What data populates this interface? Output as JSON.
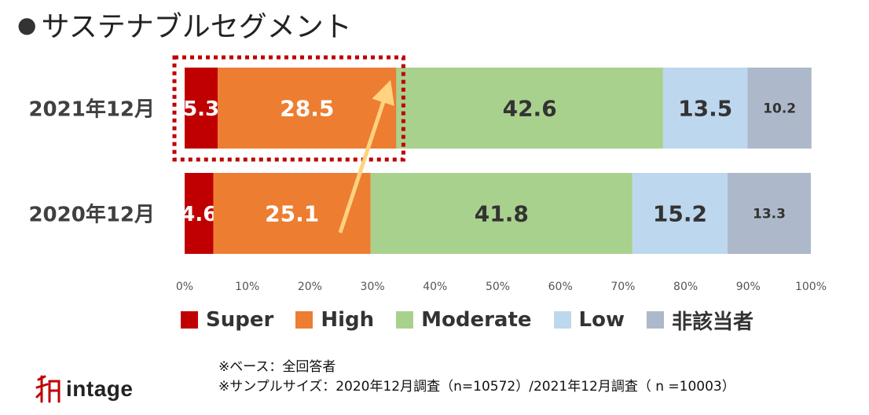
{
  "title": "サステナブルセグメント",
  "title_bullet": "●",
  "chart_data": {
    "type": "bar",
    "orientation": "horizontal",
    "stacked": true,
    "percent_stacked": true,
    "categories": [
      "2021年12月",
      "2020年12月"
    ],
    "series": [
      {
        "name": "Super",
        "values": [
          5.3,
          4.6
        ],
        "color": "#C00000"
      },
      {
        "name": "High",
        "values": [
          28.5,
          25.1
        ],
        "color": "#ED7D31"
      },
      {
        "name": "Moderate",
        "values": [
          42.6,
          41.8
        ],
        "color": "#A9D18E"
      },
      {
        "name": "Low",
        "values": [
          13.5,
          15.2
        ],
        "color": "#BDD7EE"
      },
      {
        "name": "非該当者",
        "values": [
          10.2,
          13.3
        ],
        "color": "#ADB9CA"
      }
    ],
    "xlim": [
      0,
      100
    ],
    "xticks": [
      "0%",
      "10%",
      "20%",
      "30%",
      "40%",
      "50%",
      "60%",
      "70%",
      "80%",
      "90%",
      "100%"
    ],
    "highlight": {
      "category": "2021年12月",
      "series": [
        "Super",
        "High"
      ],
      "style": "dotted-box",
      "color": "#C00000"
    },
    "arrow": {
      "from": {
        "category": "2020年12月",
        "series": "High"
      },
      "to": {
        "category": "2021年12月",
        "series": "High"
      },
      "color": "#FFD37F"
    }
  },
  "legend": [
    "Super",
    "High",
    "Moderate",
    "Low",
    "非該当者"
  ],
  "notes": [
    "※ベース：全回答者",
    "※サンプルサイズ：2020年12月調査（n=10572）/2021年12月調査（ n =10003）"
  ],
  "logo": {
    "text": "intage",
    "icon": "intage-logo-icon",
    "color": "#C00000"
  }
}
